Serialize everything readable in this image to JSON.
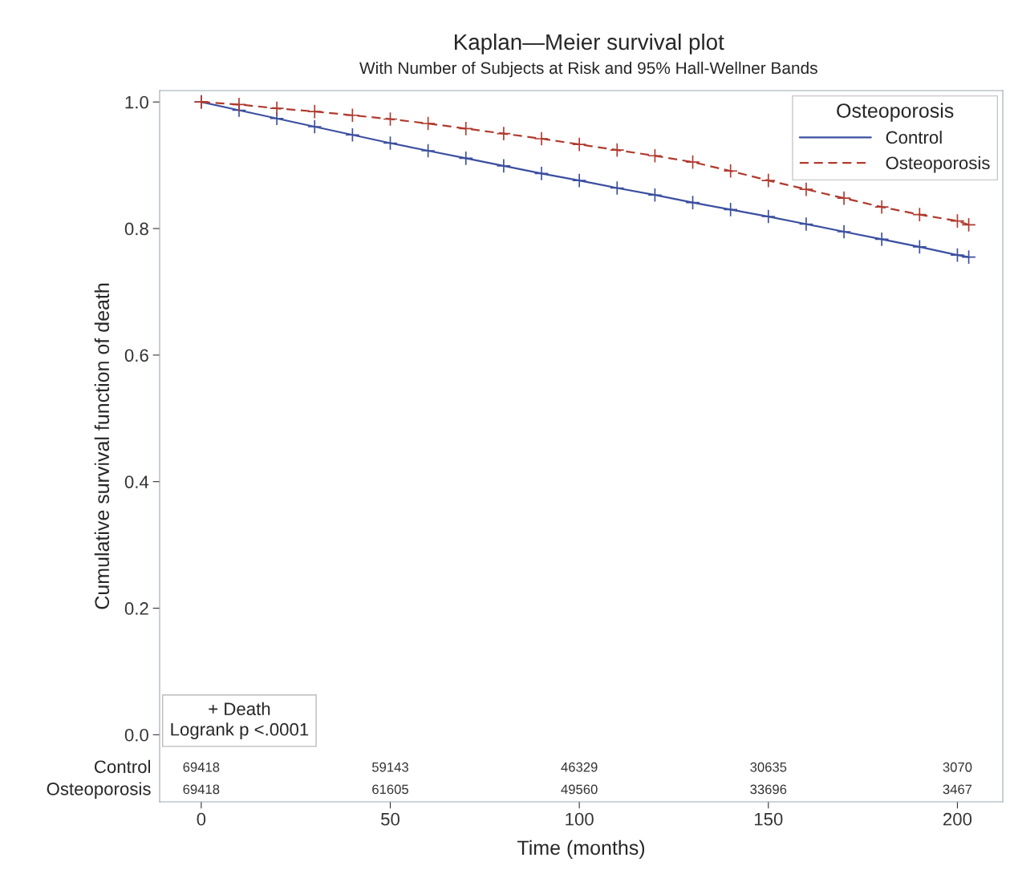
{
  "chart_data": {
    "type": "line",
    "title": "Kaplan—Meier survival plot",
    "subtitle": "With Number of Subjects at Risk and 95% Hall-Wellner Bands",
    "xlabel": "Time (months)",
    "ylabel": "Cumulative survival function of death",
    "legend_title": "Osteoporosis",
    "x": [
      0,
      10,
      20,
      30,
      40,
      50,
      60,
      70,
      80,
      90,
      100,
      110,
      120,
      130,
      140,
      150,
      160,
      170,
      180,
      190,
      200,
      203
    ],
    "series": [
      {
        "name": "Control",
        "color": "#3b4fa0",
        "line_style": "solid",
        "values": [
          1.0,
          0.987,
          0.974,
          0.961,
          0.948,
          0.935,
          0.923,
          0.911,
          0.899,
          0.887,
          0.876,
          0.864,
          0.853,
          0.841,
          0.83,
          0.819,
          0.807,
          0.795,
          0.783,
          0.771,
          0.758,
          0.755
        ]
      },
      {
        "name": "Osteoporosis",
        "color": "#b03a2e",
        "line_style": "dashed",
        "values": [
          1.0,
          0.996,
          0.99,
          0.985,
          0.979,
          0.973,
          0.966,
          0.958,
          0.95,
          0.942,
          0.933,
          0.924,
          0.915,
          0.905,
          0.891,
          0.876,
          0.862,
          0.848,
          0.834,
          0.822,
          0.812,
          0.806
        ]
      }
    ],
    "marker": "cross",
    "xlim": [
      -11,
      212
    ],
    "xticks": [
      0,
      50,
      100,
      150,
      200
    ],
    "ylim": [
      -0.106,
      1.018
    ],
    "yticks": [
      {
        "value": 0,
        "label": "0.0"
      },
      0.2,
      0.4,
      0.6,
      0.8,
      {
        "value": 1,
        "label": "1.0"
      }
    ],
    "grid": false,
    "legend": "top right",
    "annotations": [
      "+ Death\nLogrank p <.0001",
      "69418",
      "59143",
      "46329",
      "30635",
      "3070",
      "69418",
      "61605",
      "49560",
      "33696",
      "3467"
    ]
  }
}
